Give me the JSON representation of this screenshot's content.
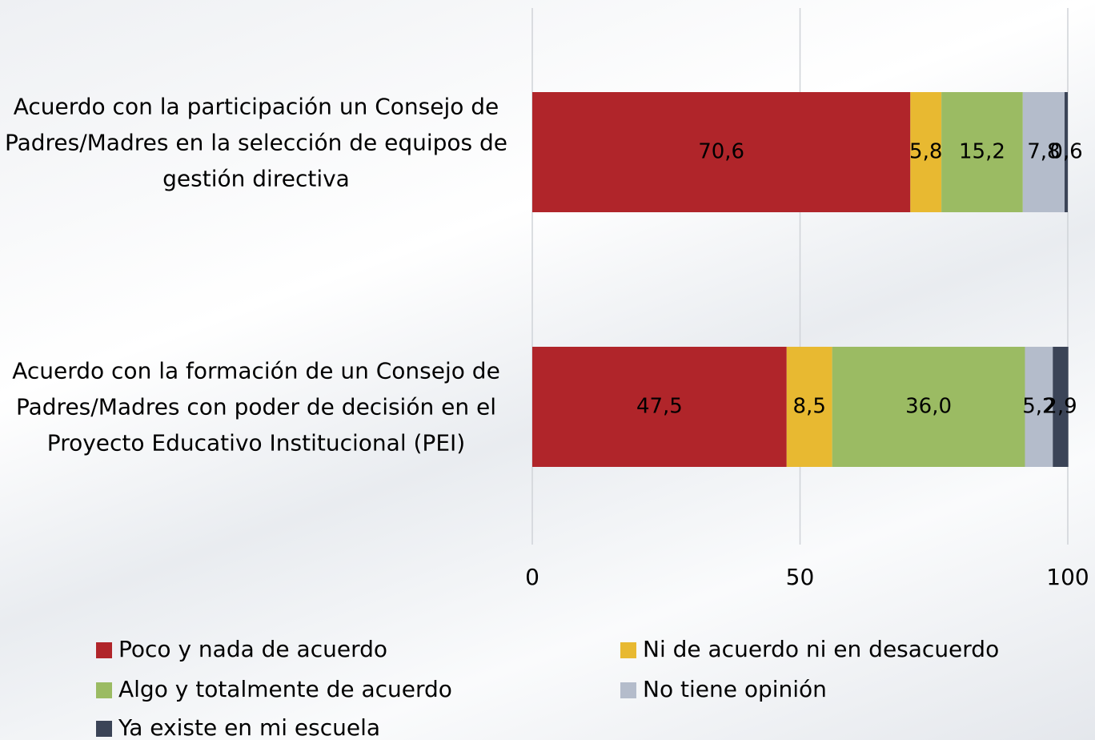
{
  "chart_data": {
    "type": "stacked-bar-horizontal",
    "categories": [
      "Acuerdo con la participación un Consejo de Padres/Madres en la selección de equipos de gestión directiva",
      "Acuerdo con la formación de un Consejo de Padres/Madres con poder de decisión en el Proyecto Educativo Institucional (PEI)"
    ],
    "series": [
      {
        "name": "Poco y nada de acuerdo",
        "color": "#b0252a",
        "values": [
          70.6,
          47.5
        ],
        "value_labels": [
          "70,6",
          "47,5"
        ]
      },
      {
        "name": "Ni de acuerdo ni en desacuerdo",
        "color": "#e8b931",
        "values": [
          5.8,
          8.5
        ],
        "value_labels": [
          "5,8",
          "8,5"
        ]
      },
      {
        "name": "Algo y totalmente de acuerdo",
        "color": "#9bbb63",
        "values": [
          15.2,
          36.0
        ],
        "value_labels": [
          "15,2",
          "36,0"
        ]
      },
      {
        "name": "No tiene opinión",
        "color": "#b4bccb",
        "values": [
          7.8,
          5.2
        ],
        "value_labels": [
          "7,8",
          "5,2"
        ]
      },
      {
        "name": "Ya existe en mi escuela",
        "color": "#3b4457",
        "values": [
          0.6,
          2.9
        ],
        "value_labels": [
          "0,6",
          "2,9"
        ]
      }
    ],
    "xlim": [
      0,
      100
    ],
    "xticks": [
      0,
      50,
      100
    ],
    "grid": true,
    "legend": "bottom"
  }
}
